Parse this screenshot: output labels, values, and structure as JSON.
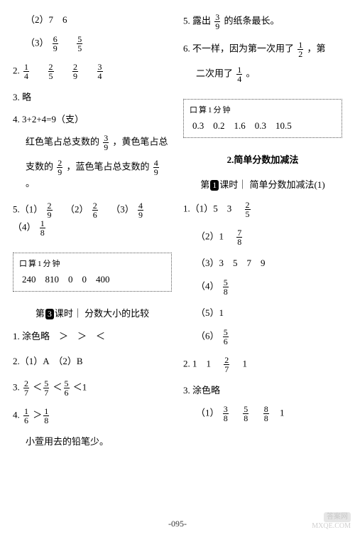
{
  "left": {
    "l1": "（2）7　6",
    "l2a": "（3）",
    "l3_num": "2.",
    "l4": "3. 略",
    "l5": "4. 3+2+4=9（支）",
    "l6a": "红色笔占总支数的",
    "l6b": "，黄色笔占总",
    "l7a": "支数的",
    "l7b": "，蓝色笔占总支数的",
    "l7c": "。",
    "l8a": "5.（1）",
    "l8b": "（2）",
    "l8c": "（3）",
    "l8d": "（4）",
    "box1_title": "口算1分钟",
    "box1_vals": "240　810　0　0　400",
    "sec_title_pre": "第",
    "sec_badge": "3",
    "sec_title_post": "课时",
    "sec_title_text": "｜ 分数大小的比较",
    "q1": "1. 涂色略　＞　＞　＜",
    "q2": "2.（1）A　（2）B",
    "q3_num": "3.",
    "q4_num": "4.",
    "q4_text": "小萱用去的铅笔少。"
  },
  "right": {
    "r1a": "5. 露出",
    "r1b": "的纸条最长。",
    "r2a": "6. 不一样，因为第一次用了",
    "r2b": "，第",
    "r3a": "二次用了",
    "r3b": "。",
    "box2_title": "口算1分钟",
    "box2_vals": "0.3　0.2　1.6　0.3　10.5",
    "subsec": "2.简单分数加减法",
    "sec2_pre": "第",
    "sec2_badge": "1",
    "sec2_post": "课时",
    "sec2_text": "｜ 简单分数加减法(1)",
    "p1a": "1.（1）5　3　",
    "p2a": "（2）1　",
    "p3": "（3）3　5　7　9",
    "p4a": "（4）",
    "p5": "（5）1",
    "p6a": "（6）",
    "p7a": "2. 1　1　",
    "p7b": "　1",
    "p8": "3. 涂色略",
    "p9a": "（1）"
  },
  "fracs": {
    "f6_9": {
      "n": "6",
      "d": "9"
    },
    "f5_5": {
      "n": "5",
      "d": "5"
    },
    "f1_4": {
      "n": "1",
      "d": "4"
    },
    "f2_5": {
      "n": "2",
      "d": "5"
    },
    "f2_9": {
      "n": "2",
      "d": "9"
    },
    "f3_4": {
      "n": "3",
      "d": "4"
    },
    "f3_9": {
      "n": "3",
      "d": "9"
    },
    "f4_9": {
      "n": "4",
      "d": "9"
    },
    "f2_6": {
      "n": "2",
      "d": "6"
    },
    "f1_8": {
      "n": "1",
      "d": "8"
    },
    "f2_7": {
      "n": "2",
      "d": "7"
    },
    "f5_7": {
      "n": "5",
      "d": "7"
    },
    "f5_6": {
      "n": "5",
      "d": "6"
    },
    "f1_6": {
      "n": "1",
      "d": "6"
    },
    "f1_2": {
      "n": "1",
      "d": "2"
    },
    "f2_5b": {
      "n": "2",
      "d": "5"
    },
    "f7_8": {
      "n": "7",
      "d": "8"
    },
    "f5_8": {
      "n": "5",
      "d": "8"
    },
    "f3_8": {
      "n": "3",
      "d": "8"
    },
    "f8_8": {
      "n": "8",
      "d": "8"
    }
  },
  "pagenum": "-095-",
  "watermark_top": "答案网",
  "watermark_bottom": "MXQE.COM"
}
